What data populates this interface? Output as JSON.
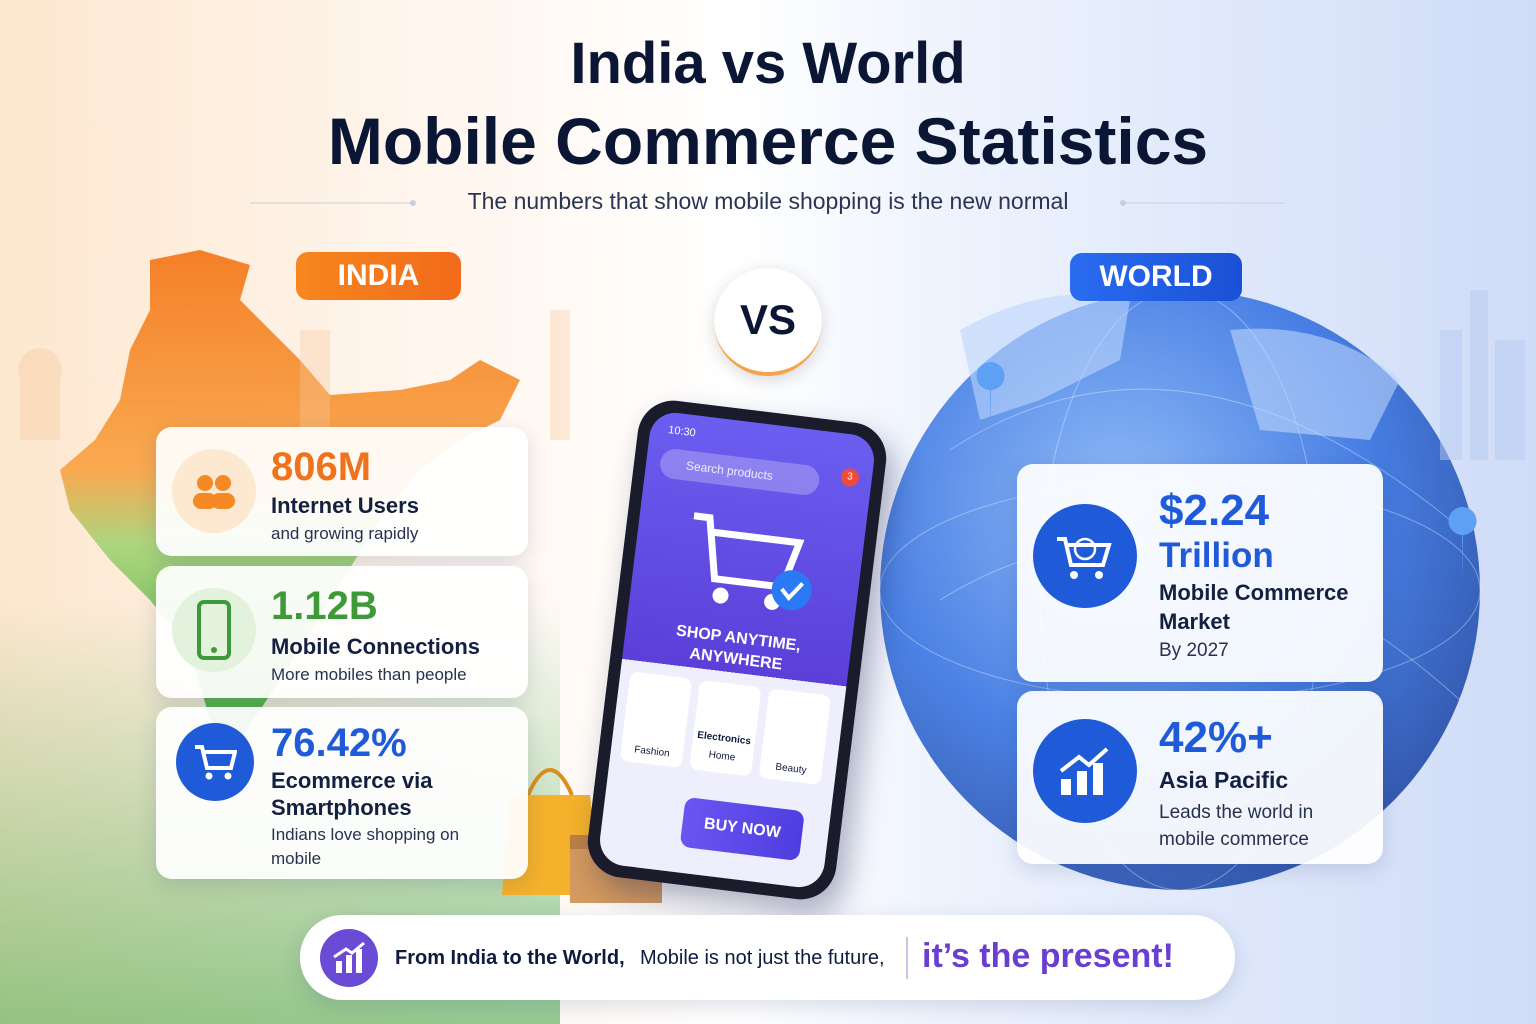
{
  "header": {
    "title_line1": "India vs World",
    "title_line2": "Mobile Commerce Statistics",
    "subtitle": "The numbers that show mobile shopping is the new normal"
  },
  "india": {
    "badge": "INDIA",
    "stats": [
      {
        "value": "806M",
        "label": "Internet Users",
        "note": "and growing rapidly"
      },
      {
        "value": "1.12B",
        "label": "Mobile Connections",
        "note": "More mobiles than people"
      },
      {
        "value": "76.42%",
        "label": "Ecommerce via Smartphones",
        "note": "Indians love shopping on mobile"
      }
    ]
  },
  "vs": "VS",
  "world": {
    "badge": "WORLD",
    "stats": [
      {
        "value": "$2.24",
        "unit": "Trillion",
        "label": "Mobile Commerce Market",
        "note": "By 2027"
      },
      {
        "value": "42%+",
        "label": "Asia Pacific",
        "note": "Leads the world in mobile commerce"
      }
    ]
  },
  "phone": {
    "time": "10:30",
    "search": "Search products",
    "cart_count": "3",
    "tagline": "SHOP ANYTIME, ANYWHERE",
    "categories": [
      "Fashion",
      "Electronics",
      "Home",
      "Beauty"
    ],
    "button": "BUY NOW"
  },
  "footer": {
    "lead": "From India to the World,",
    "middle": "Mobile is not just the future,",
    "highlight": "it’s the present!"
  }
}
